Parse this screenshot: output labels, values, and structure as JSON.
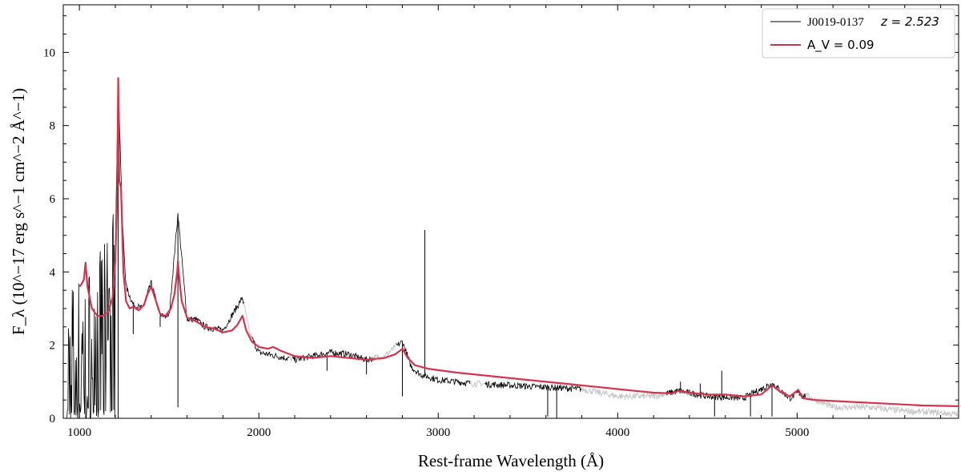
{
  "chart_data": {
    "type": "line",
    "xlabel": "Rest-frame Wavelength  (Å)",
    "ylabel": "F_λ  (10^−17 erg s^−1 cm^−2 Å^−1)",
    "xlim": [
      910,
      5900
    ],
    "ylim": [
      0,
      11.3
    ],
    "x_ticks": [
      1000,
      2000,
      3000,
      4000,
      5000
    ],
    "y_ticks": [
      0,
      2,
      4,
      6,
      8,
      10
    ],
    "grid": false,
    "legend_position": "top-right",
    "colors": {
      "spectrum": "#000000",
      "masked": "#c8c8c8",
      "model": "#d6334f"
    },
    "legend": [
      {
        "series": "spectrum",
        "label_object": "J0019-0137",
        "label_redshift": "z = 2.523"
      },
      {
        "series": "model",
        "label": "A_V = 0.09"
      }
    ],
    "series": [
      {
        "name": "J0019-0137",
        "role": "observed spectrum",
        "continuum_x": [
          930,
          980,
          1050,
          1100,
          1150,
          1200,
          1216,
          1240,
          1260,
          1300,
          1350,
          1400,
          1450,
          1500,
          1549,
          1600,
          1650,
          1700,
          1800,
          1909,
          1950,
          2000,
          2100,
          2200,
          2300,
          2400,
          2500,
          2600,
          2700,
          2800,
          2850,
          2900,
          3000,
          3100,
          3200,
          3400,
          3600,
          3800,
          4000,
          4200,
          4340,
          4500,
          4700,
          4861,
          4959,
          5007,
          5200,
          5400,
          5600,
          5800,
          5900
        ],
        "continuum_y": [
          0.9,
          1.3,
          2.0,
          2.6,
          3.0,
          4.6,
          9.3,
          5.3,
          3.6,
          3.1,
          3.0,
          3.7,
          2.8,
          2.8,
          5.6,
          2.7,
          2.7,
          2.5,
          2.4,
          3.3,
          2.3,
          1.8,
          1.7,
          1.6,
          1.7,
          1.8,
          1.75,
          1.6,
          1.7,
          2.1,
          1.4,
          1.2,
          1.05,
          1.0,
          0.95,
          0.9,
          0.85,
          0.8,
          0.6,
          0.6,
          0.75,
          0.6,
          0.55,
          0.95,
          0.55,
          0.7,
          0.3,
          0.3,
          0.2,
          0.15,
          0.1
        ]
      },
      {
        "name": "A_V = 0.09",
        "role": "model fit",
        "x": [
          1000,
          1010,
          1025,
          1034,
          1045,
          1070,
          1100,
          1130,
          1160,
          1185,
          1200,
          1210,
          1216,
          1222,
          1232,
          1245,
          1260,
          1280,
          1300,
          1330,
          1360,
          1380,
          1400,
          1420,
          1450,
          1480,
          1510,
          1530,
          1545,
          1549,
          1555,
          1570,
          1600,
          1650,
          1700,
          1750,
          1800,
          1850,
          1880,
          1909,
          1930,
          1960,
          2000,
          2050,
          2080,
          2120,
          2200,
          2300,
          2400,
          2500,
          2600,
          2700,
          2760,
          2800,
          2830,
          2870,
          2950,
          3100,
          3300,
          3500,
          3700,
          3900,
          4000,
          4100,
          4200,
          4300,
          4340,
          4400,
          4500,
          4600,
          4700,
          4800,
          4861,
          4900,
          4959,
          5007,
          5030,
          5100,
          5300,
          5500,
          5700,
          5900
        ],
        "y": [
          3.6,
          3.65,
          3.8,
          4.25,
          3.6,
          3.0,
          2.8,
          2.8,
          2.9,
          3.3,
          4.3,
          6.0,
          9.3,
          6.5,
          6.3,
          4.0,
          3.2,
          3.0,
          3.05,
          2.95,
          3.1,
          3.4,
          3.6,
          3.3,
          2.85,
          2.8,
          3.0,
          3.4,
          4.0,
          4.3,
          3.9,
          3.2,
          2.75,
          2.65,
          2.5,
          2.45,
          2.35,
          2.4,
          2.55,
          2.8,
          2.4,
          2.1,
          1.95,
          1.9,
          1.95,
          1.85,
          1.7,
          1.65,
          1.7,
          1.65,
          1.6,
          1.65,
          1.75,
          1.9,
          1.65,
          1.45,
          1.35,
          1.25,
          1.15,
          1.05,
          0.95,
          0.85,
          0.8,
          0.75,
          0.7,
          0.68,
          0.75,
          0.7,
          0.65,
          0.65,
          0.6,
          0.65,
          0.9,
          0.75,
          0.6,
          0.78,
          0.55,
          0.5,
          0.45,
          0.4,
          0.35,
          0.33
        ]
      }
    ],
    "masked_regions": [
      {
        "x": [
          1920,
          1960
        ]
      },
      {
        "x": [
          2170,
          2185
        ]
      },
      {
        "x": [
          2640,
          2760
        ]
      },
      {
        "x": [
          3180,
          3260
        ]
      },
      {
        "x": [
          3800,
          4270
        ]
      },
      {
        "x": [
          5050,
          5900
        ]
      }
    ],
    "absorption_lines": [
      {
        "x": 1216,
        "y": 0.0
      },
      {
        "x": 1300,
        "y": 2.3
      },
      {
        "x": 1450,
        "y": 2.5
      },
      {
        "x": 1549,
        "y": 0.3
      },
      {
        "x": 2380,
        "y": 1.3
      },
      {
        "x": 2600,
        "y": 1.2
      },
      {
        "x": 2800,
        "y": 0.6
      },
      {
        "x": 3610,
        "y": 0.05
      },
      {
        "x": 3660,
        "y": 0.0
      },
      {
        "x": 4540,
        "y": 0.05
      },
      {
        "x": 4740,
        "y": 0.05
      },
      {
        "x": 4860,
        "y": 0.05
      }
    ],
    "emission_spikes": [
      {
        "x": 2925,
        "y": 5.15
      },
      {
        "x": 4580,
        "y": 1.3
      },
      {
        "x": 4350,
        "y": 1.0
      },
      {
        "x": 4460,
        "y": 0.95
      },
      {
        "x": 4830,
        "y": 0.95
      }
    ]
  }
}
